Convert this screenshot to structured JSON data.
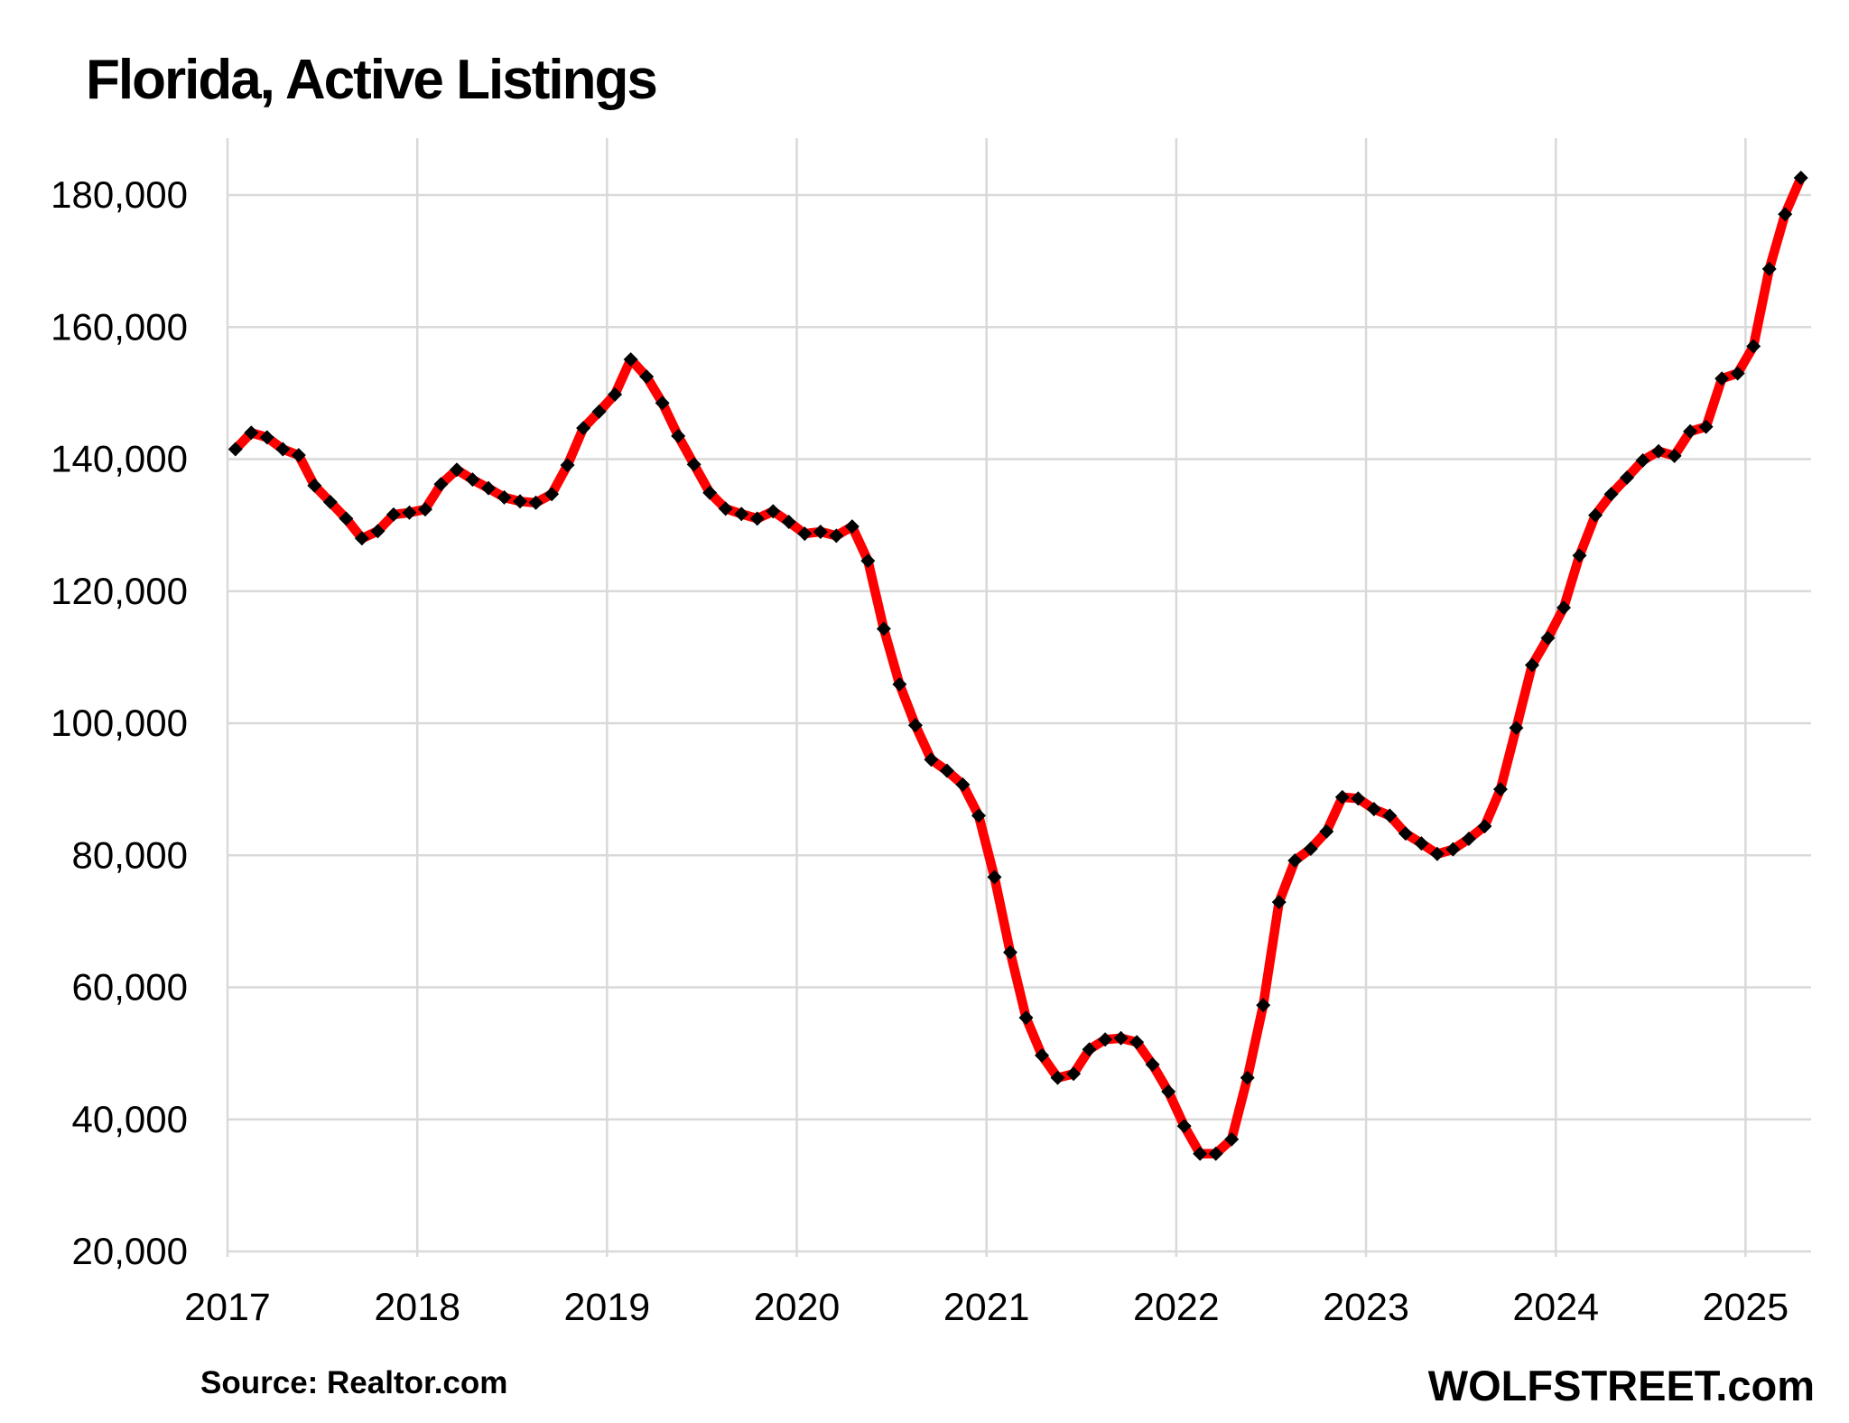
{
  "page": {
    "background": "#FFFFFF"
  },
  "header": {
    "title": "Florida, Active Listings"
  },
  "footer": {
    "source_note": "Source: Realtor.com",
    "branding": "WOLFSTREET.com"
  },
  "chart_data": {
    "type": "line",
    "title": "Florida, Active Listings",
    "xlabel": "",
    "ylabel": "",
    "legend": "none",
    "grid": true,
    "line_color": "#FF0000",
    "marker": "diamond",
    "marker_color": "#000000",
    "gridline_color": "#D9D9D9",
    "axis_text_color": "#000000",
    "x_tick_labels": [
      "2017",
      "2018",
      "2019",
      "2020",
      "2021",
      "2022",
      "2023",
      "2024",
      "2025"
    ],
    "y_tick_values": [
      20000,
      40000,
      60000,
      80000,
      100000,
      120000,
      140000,
      160000,
      180000
    ],
    "y_tick_labels": [
      "20,000",
      "40,000",
      "60,000",
      "80,000",
      "100,000",
      "120,000",
      "140,000",
      "160,000",
      "180,000"
    ],
    "ylim": [
      17400,
      188600
    ],
    "series": [
      {
        "name": "Florida active listings",
        "frequency": "monthly",
        "start": "2017-01",
        "end": "2025-04",
        "values": [
          141500,
          144000,
          143300,
          141500,
          140600,
          136000,
          133500,
          131000,
          128000,
          129100,
          131600,
          131900,
          132400,
          136200,
          138400,
          136900,
          135600,
          134200,
          133600,
          133400,
          134700,
          139100,
          144700,
          147200,
          149800,
          155100,
          152500,
          148500,
          143500,
          139200,
          134900,
          132500,
          131700,
          131000,
          132100,
          130500,
          128700,
          129000,
          128400,
          129800,
          124600,
          114300,
          105900,
          99700,
          94500,
          92800,
          90700,
          86000,
          76700,
          65300,
          55400,
          49700,
          46300,
          46900,
          50600,
          52100,
          52300,
          51700,
          48300,
          44200,
          39000,
          34800,
          34800,
          37000,
          46300,
          57300,
          72900,
          79200,
          81000,
          83600,
          88800,
          88600,
          87000,
          86000,
          83300,
          81800,
          80200,
          80900,
          82500,
          84400,
          90000,
          99300,
          108800,
          112900,
          117500,
          125400,
          131500,
          134700,
          137200,
          139800,
          141200,
          140500,
          144200,
          144900,
          152200,
          153000,
          157100,
          168800,
          177100,
          182600
        ]
      }
    ]
  }
}
